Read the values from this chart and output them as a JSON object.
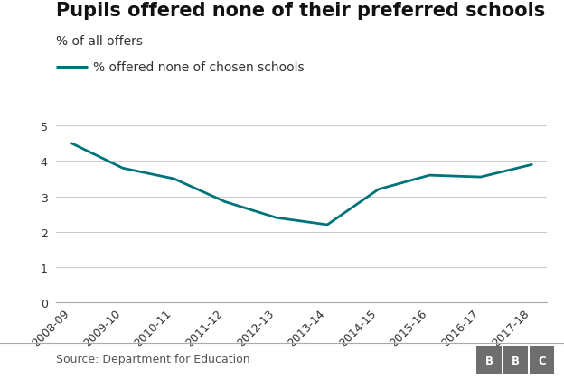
{
  "title": "Pupils offered none of their preferred schools",
  "subtitle": "% of all offers",
  "legend_label": "% offered none of chosen schools",
  "source": "Source: Department for Education",
  "line_color": "#00737a",
  "line_width": 2.0,
  "background_color": "#ffffff",
  "x_labels": [
    "2008-09",
    "2009-10",
    "2010-11",
    "2011-12",
    "2012-13",
    "2013-14",
    "2014-15",
    "2015-16",
    "2016-17",
    "2017-18"
  ],
  "y_values": [
    4.5,
    3.8,
    3.5,
    2.85,
    2.4,
    2.2,
    3.2,
    3.6,
    3.55,
    3.9
  ],
  "ylim": [
    0,
    5.5
  ],
  "yticks": [
    0,
    1,
    2,
    3,
    4,
    5
  ],
  "grid_color": "#cccccc",
  "tick_label_fontsize": 9,
  "title_fontsize": 15,
  "subtitle_fontsize": 10,
  "legend_fontsize": 10,
  "source_fontsize": 9,
  "bbc_box_color": "#6e6e6e"
}
